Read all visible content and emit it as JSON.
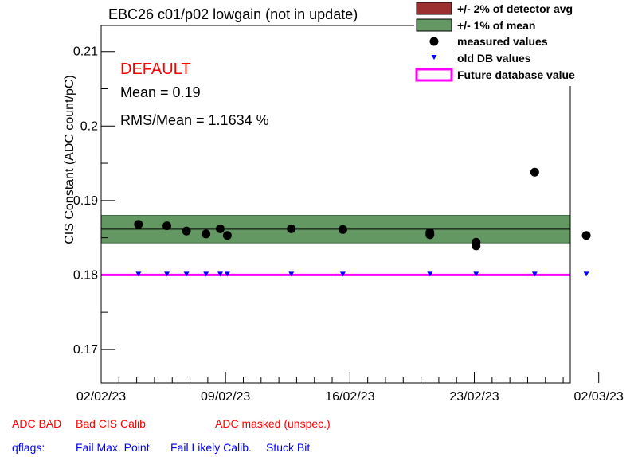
{
  "chart_data": {
    "type": "scatter",
    "title": "EBC26 c01/p02 lowgain (not in update)",
    "ylabel": "CIS Constant (ADC count/pC)",
    "xlabel": "",
    "ylim": [
      0.1655,
      0.2135
    ],
    "xlim": [
      0.0,
      26.4
    ],
    "xticks": [
      {
        "x": 0,
        "label": "02/02/23"
      },
      {
        "x": 7,
        "label": "09/02/23"
      },
      {
        "x": 14,
        "label": "16/02/23"
      },
      {
        "x": 21,
        "label": "23/02/23"
      },
      {
        "x": 28,
        "label": "02/03/23"
      }
    ],
    "yticks": [
      0.17,
      0.18,
      0.19,
      0.2,
      0.21
    ],
    "mean": 0.1862,
    "band_2pct_detector_avg": [
      0.1825,
      0.1899
    ],
    "band_1pct_mean": [
      0.1843,
      0.188
    ],
    "future_db_value": 0.18,
    "series": [
      {
        "name": "measured values",
        "x": [
          2.1,
          3.7,
          4.8,
          5.9,
          6.7,
          7.1,
          10.7,
          13.6,
          18.5,
          18.5,
          21.1,
          21.1,
          24.4,
          27.3
        ],
        "y": [
          0.1868,
          0.1866,
          0.1859,
          0.1855,
          0.1862,
          0.1853,
          0.1862,
          0.1861,
          0.1857,
          0.1854,
          0.1844,
          0.1839,
          0.1938,
          0.1853
        ]
      },
      {
        "name": "old DB values",
        "x": [
          2.1,
          3.7,
          4.8,
          5.9,
          6.7,
          7.1,
          10.7,
          13.6,
          18.5,
          21.1,
          24.4,
          27.3
        ],
        "y": [
          0.18,
          0.18,
          0.18,
          0.18,
          0.18,
          0.18,
          0.18,
          0.18,
          0.18,
          0.18,
          0.18,
          0.18
        ]
      }
    ],
    "legend": {
      "placement": "top-right",
      "entries": [
        {
          "label": "+/- 2% of detector avg",
          "color": "#9c2f2f"
        },
        {
          "label": "+/- 1% of mean",
          "color": "#639863"
        },
        {
          "label": "measured values",
          "color": "#000000"
        },
        {
          "label": "old DB values",
          "color": "#0000ff"
        },
        {
          "label": "Future database value",
          "color": "#ff00ff"
        }
      ]
    },
    "annotations": {
      "default_label": "DEFAULT",
      "mean_label": "Mean = 0.19",
      "rms_label": "RMS/Mean = 1.1634 %"
    }
  },
  "status": {
    "adc_bad": "ADC BAD",
    "bad_cis_calib": "Bad CIS Calib",
    "adc_masked": "ADC masked (unspec.)",
    "qflags": "qflags:",
    "fail_max_point": "Fail Max. Point",
    "fail_likely_calib": "Fail Likely Calib.",
    "stuck_bit": "Stuck Bit"
  }
}
